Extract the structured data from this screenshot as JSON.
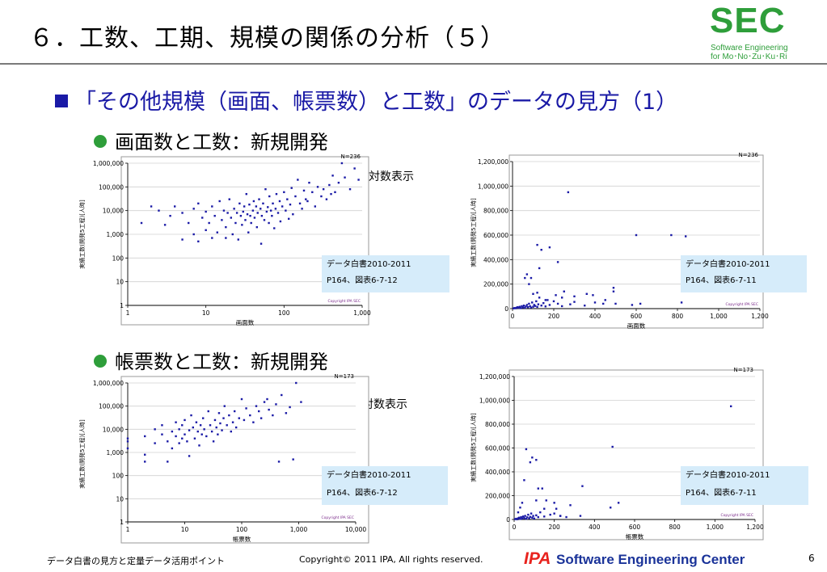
{
  "slide": {
    "title": "６．工数、工期、規模の関係の分析（５）",
    "logo": {
      "main": "SEC",
      "line1": "Software Engineering",
      "line2": "for Mo･No･Zu･Ku･Ri"
    },
    "heading": "「その他規模（画面、帳票数）と工数」のデータの見方（1）",
    "section1": "画面数と工数：新規開発",
    "section2": "帳票数と工数：新規開発",
    "log_note": "対数表示",
    "footer": {
      "left": "データ白書の見方と定量データ活用ポイント",
      "copyright": "Copyright© 2011 IPA, All rights reserved.",
      "ipa": "IPA",
      "org": "Software Engineering Center",
      "page": "6"
    },
    "colors": {
      "logo_green": "#2e9e3a",
      "heading_blue": "#1a1aa6",
      "marker": "#1a1aa6",
      "source_box": "#d6ecfa",
      "ipa_red": "#e8231e"
    }
  },
  "chart_data": [
    {
      "id": "screens-log",
      "type": "scatter",
      "n_label": "N=236",
      "xlabel": "画面数",
      "ylabel": "実績工数(開発5工程)[人時]",
      "xscale": "log",
      "yscale": "log",
      "xlim": [
        1,
        1000
      ],
      "ylim": [
        1,
        1000000
      ],
      "x_ticks": [
        "1",
        "10",
        "100",
        "1,000"
      ],
      "y_ticks": [
        "1",
        "10",
        "100",
        "1,000",
        "10,000",
        "100,000",
        "1,000,000"
      ],
      "source": [
        "データ白書2010-2011",
        "P164、図表6-7-12"
      ],
      "copyright": "Copyright IPA SEC",
      "points": [
        [
          1.5,
          3000
        ],
        [
          2,
          15000
        ],
        [
          2.5,
          10000
        ],
        [
          3,
          2500
        ],
        [
          3.5,
          6000
        ],
        [
          4,
          15000
        ],
        [
          5,
          8000
        ],
        [
          5,
          600
        ],
        [
          6,
          3000
        ],
        [
          7,
          1000
        ],
        [
          7,
          12000
        ],
        [
          8,
          500
        ],
        [
          8,
          20000
        ],
        [
          9,
          5000
        ],
        [
          10,
          9000
        ],
        [
          10,
          1500
        ],
        [
          11,
          3000
        ],
        [
          12,
          15000
        ],
        [
          12,
          700
        ],
        [
          13,
          6000
        ],
        [
          14,
          1200
        ],
        [
          15,
          25000
        ],
        [
          16,
          4000
        ],
        [
          17,
          10000
        ],
        [
          18,
          2000
        ],
        [
          18,
          700
        ],
        [
          19,
          8000
        ],
        [
          20,
          30000
        ],
        [
          21,
          5000
        ],
        [
          22,
          1000
        ],
        [
          23,
          12000
        ],
        [
          24,
          3000
        ],
        [
          25,
          8000
        ],
        [
          26,
          600
        ],
        [
          27,
          20000
        ],
        [
          28,
          6000
        ],
        [
          29,
          2500
        ],
        [
          30,
          9000
        ],
        [
          31,
          15000
        ],
        [
          32,
          4000
        ],
        [
          33,
          50000
        ],
        [
          34,
          7000
        ],
        [
          35,
          1200
        ],
        [
          36,
          18000
        ],
        [
          37,
          6000
        ],
        [
          38,
          3000
        ],
        [
          40,
          10000
        ],
        [
          41,
          25000
        ],
        [
          42,
          5000
        ],
        [
          44,
          15000
        ],
        [
          45,
          2000
        ],
        [
          46,
          8000
        ],
        [
          48,
          30000
        ],
        [
          50,
          12000
        ],
        [
          51,
          400
        ],
        [
          52,
          6000
        ],
        [
          54,
          20000
        ],
        [
          56,
          4000
        ],
        [
          58,
          80000
        ],
        [
          60,
          9000
        ],
        [
          62,
          14000
        ],
        [
          64,
          3000
        ],
        [
          65,
          40000
        ],
        [
          68,
          10000
        ],
        [
          70,
          6000
        ],
        [
          72,
          20000
        ],
        [
          75,
          1800
        ],
        [
          78,
          12000
        ],
        [
          80,
          50000
        ],
        [
          84,
          8000
        ],
        [
          88,
          25000
        ],
        [
          90,
          3500
        ],
        [
          95,
          15000
        ],
        [
          100,
          60000
        ],
        [
          105,
          10000
        ],
        [
          110,
          30000
        ],
        [
          115,
          4500
        ],
        [
          120,
          18000
        ],
        [
          125,
          90000
        ],
        [
          130,
          7000
        ],
        [
          140,
          40000
        ],
        [
          150,
          200000
        ],
        [
          160,
          20000
        ],
        [
          170,
          12000
        ],
        [
          180,
          70000
        ],
        [
          190,
          30000
        ],
        [
          200,
          25000
        ],
        [
          210,
          150000
        ],
        [
          230,
          60000
        ],
        [
          250,
          15000
        ],
        [
          270,
          100000
        ],
        [
          300,
          40000
        ],
        [
          320,
          80000
        ],
        [
          350,
          30000
        ],
        [
          380,
          120000
        ],
        [
          400,
          50000
        ],
        [
          450,
          60000
        ],
        [
          500,
          150000
        ],
        [
          550,
          1000000
        ],
        [
          600,
          250000
        ],
        [
          700,
          80000
        ],
        [
          800,
          600000
        ],
        [
          420,
          300000
        ],
        [
          900,
          200000
        ]
      ]
    },
    {
      "id": "screens-linear",
      "type": "scatter",
      "n_label": "N=236",
      "xlabel": "画面数",
      "ylabel": "実績工数(開発5工程)[人時]",
      "xlim": [
        0,
        1200
      ],
      "ylim": [
        0,
        1200000
      ],
      "x_ticks": [
        "0",
        "200",
        "400",
        "600",
        "800",
        "1,000",
        "1,200"
      ],
      "y_ticks": [
        "0",
        "200,000",
        "400,000",
        "600,000",
        "800,000",
        "1,000,000",
        "1,200,000"
      ],
      "source": [
        "データ白書2010-2011",
        "P164、図表6-7-11"
      ],
      "copyright": "Copyright IPA SEC",
      "points": [
        [
          5,
          2000
        ],
        [
          10,
          5000
        ],
        [
          15,
          3000
        ],
        [
          20,
          8000
        ],
        [
          25,
          12000
        ],
        [
          30,
          6000
        ],
        [
          35,
          15000
        ],
        [
          40,
          4000
        ],
        [
          45,
          20000
        ],
        [
          50,
          10000
        ],
        [
          55,
          25000
        ],
        [
          60,
          7000
        ],
        [
          65,
          18000
        ],
        [
          70,
          30000
        ],
        [
          75,
          12000
        ],
        [
          80,
          40000
        ],
        [
          85,
          20000
        ],
        [
          90,
          9000
        ],
        [
          95,
          50000
        ],
        [
          100,
          15000
        ],
        [
          105,
          30000
        ],
        [
          110,
          22000
        ],
        [
          115,
          60000
        ],
        [
          120,
          14000
        ],
        [
          125,
          35000
        ],
        [
          130,
          90000
        ],
        [
          140,
          25000
        ],
        [
          150,
          45000
        ],
        [
          160,
          18000
        ],
        [
          170,
          70000
        ],
        [
          180,
          30000
        ],
        [
          200,
          60000
        ],
        [
          220,
          40000
        ],
        [
          240,
          20000
        ],
        [
          280,
          35000
        ],
        [
          300,
          55000
        ],
        [
          350,
          25000
        ],
        [
          400,
          50000
        ],
        [
          450,
          70000
        ],
        [
          500,
          40000
        ],
        [
          60,
          250000
        ],
        [
          70,
          280000
        ],
        [
          80,
          200000
        ],
        [
          90,
          250000
        ],
        [
          100,
          120000
        ],
        [
          120,
          130000
        ],
        [
          130,
          330000
        ],
        [
          140,
          480000
        ],
        [
          120,
          520000
        ],
        [
          210,
          110000
        ],
        [
          180,
          500000
        ],
        [
          220,
          380000
        ],
        [
          240,
          90000
        ],
        [
          250,
          140000
        ],
        [
          160,
          70000
        ],
        [
          270,
          950000
        ],
        [
          300,
          100000
        ],
        [
          360,
          120000
        ],
        [
          390,
          110000
        ],
        [
          440,
          40000
        ],
        [
          490,
          170000
        ],
        [
          490,
          140000
        ],
        [
          580,
          30000
        ],
        [
          600,
          600000
        ],
        [
          620,
          40000
        ],
        [
          770,
          600000
        ],
        [
          840,
          590000
        ],
        [
          820,
          50000
        ]
      ]
    },
    {
      "id": "forms-log",
      "type": "scatter",
      "n_label": "N=173",
      "xlabel": "帳票数",
      "ylabel": "実績工数(開発5工程)[人時]",
      "xscale": "log",
      "yscale": "log",
      "xlim": [
        1,
        10000
      ],
      "ylim": [
        1,
        1000000
      ],
      "x_ticks": [
        "1",
        "10",
        "100",
        "1,000",
        "10,000"
      ],
      "y_ticks": [
        "1",
        "10",
        "100",
        "1,000",
        "10,000",
        "100,000",
        "1,000,000"
      ],
      "source": [
        "データ白書2010-2011",
        "P164、図表6-7-12"
      ],
      "copyright": "Copyright IPA SEC",
      "points": [
        [
          1,
          3000
        ],
        [
          1,
          1500
        ],
        [
          1,
          4000
        ],
        [
          2,
          5000
        ],
        [
          2,
          800
        ],
        [
          2,
          400
        ],
        [
          3,
          10000
        ],
        [
          3,
          2500
        ],
        [
          4,
          6000
        ],
        [
          4,
          15000
        ],
        [
          5,
          3000
        ],
        [
          5,
          400
        ],
        [
          6,
          8000
        ],
        [
          6,
          1500
        ],
        [
          7,
          20000
        ],
        [
          7,
          5000
        ],
        [
          8,
          10000
        ],
        [
          8,
          2500
        ],
        [
          9,
          4000
        ],
        [
          9,
          15000
        ],
        [
          10,
          6000
        ],
        [
          10,
          25000
        ],
        [
          11,
          3000
        ],
        [
          12,
          9000
        ],
        [
          12,
          700
        ],
        [
          13,
          40000
        ],
        [
          14,
          12000
        ],
        [
          15,
          4000
        ],
        [
          16,
          20000
        ],
        [
          17,
          8000
        ],
        [
          18,
          2000
        ],
        [
          19,
          15000
        ],
        [
          20,
          6000
        ],
        [
          21,
          30000
        ],
        [
          22,
          10000
        ],
        [
          24,
          5000
        ],
        [
          26,
          60000
        ],
        [
          28,
          15000
        ],
        [
          30,
          8000
        ],
        [
          32,
          3000
        ],
        [
          34,
          25000
        ],
        [
          36,
          12000
        ],
        [
          38,
          6000
        ],
        [
          40,
          50000
        ],
        [
          42,
          18000
        ],
        [
          45,
          9000
        ],
        [
          48,
          30000
        ],
        [
          50,
          100000
        ],
        [
          55,
          15000
        ],
        [
          60,
          40000
        ],
        [
          65,
          8000
        ],
        [
          70,
          20000
        ],
        [
          75,
          60000
        ],
        [
          80,
          12000
        ],
        [
          90,
          30000
        ],
        [
          100,
          200000
        ],
        [
          110,
          25000
        ],
        [
          120,
          80000
        ],
        [
          140,
          40000
        ],
        [
          160,
          20000
        ],
        [
          180,
          100000
        ],
        [
          200,
          60000
        ],
        [
          220,
          30000
        ],
        [
          250,
          150000
        ],
        [
          280,
          200000
        ],
        [
          300,
          70000
        ],
        [
          350,
          40000
        ],
        [
          400,
          120000
        ],
        [
          500,
          300000
        ],
        [
          600,
          50000
        ],
        [
          700,
          90000
        ],
        [
          900,
          1000000
        ],
        [
          450,
          400
        ],
        [
          800,
          500
        ],
        [
          1100,
          150000
        ]
      ]
    },
    {
      "id": "forms-linear",
      "type": "scatter",
      "n_label": "N=173",
      "xlabel": "帳票数",
      "ylabel": "実績工数(開発5工程)[人時]",
      "xlim": [
        0,
        1200
      ],
      "ylim": [
        0,
        1200000
      ],
      "x_ticks": [
        "0",
        "200",
        "400",
        "600",
        "800",
        "1,000",
        "1,200"
      ],
      "y_ticks": [
        "0",
        "200,000",
        "400,000",
        "600,000",
        "800,000",
        "1,000,000",
        "1,200,000"
      ],
      "source": [
        "データ白書2010-2011",
        "P164、図表6-7-11"
      ],
      "copyright": "Copyright IPA SEC",
      "points": [
        [
          5,
          3000
        ],
        [
          10,
          6000
        ],
        [
          15,
          2000
        ],
        [
          20,
          10000
        ],
        [
          25,
          15000
        ],
        [
          30,
          5000
        ],
        [
          35,
          20000
        ],
        [
          40,
          8000
        ],
        [
          45,
          25000
        ],
        [
          50,
          12000
        ],
        [
          55,
          30000
        ],
        [
          60,
          6000
        ],
        [
          65,
          18000
        ],
        [
          70,
          40000
        ],
        [
          75,
          10000
        ],
        [
          80,
          22000
        ],
        [
          85,
          50000
        ],
        [
          90,
          15000
        ],
        [
          95,
          30000
        ],
        [
          100,
          8000
        ],
        [
          110,
          35000
        ],
        [
          120,
          20000
        ],
        [
          130,
          60000
        ],
        [
          150,
          25000
        ],
        [
          180,
          40000
        ],
        [
          200,
          50000
        ],
        [
          230,
          30000
        ],
        [
          260,
          20000
        ],
        [
          20,
          60000
        ],
        [
          30,
          100000
        ],
        [
          40,
          140000
        ],
        [
          50,
          330000
        ],
        [
          60,
          590000
        ],
        [
          80,
          480000
        ],
        [
          90,
          520000
        ],
        [
          110,
          500000
        ],
        [
          110,
          160000
        ],
        [
          120,
          260000
        ],
        [
          140,
          260000
        ],
        [
          150,
          90000
        ],
        [
          160,
          160000
        ],
        [
          200,
          140000
        ],
        [
          210,
          90000
        ],
        [
          230,
          30000
        ],
        [
          280,
          120000
        ],
        [
          340,
          280000
        ],
        [
          480,
          100000
        ],
        [
          520,
          140000
        ],
        [
          490,
          610000
        ],
        [
          1080,
          950000
        ],
        [
          330,
          30000
        ]
      ]
    }
  ]
}
